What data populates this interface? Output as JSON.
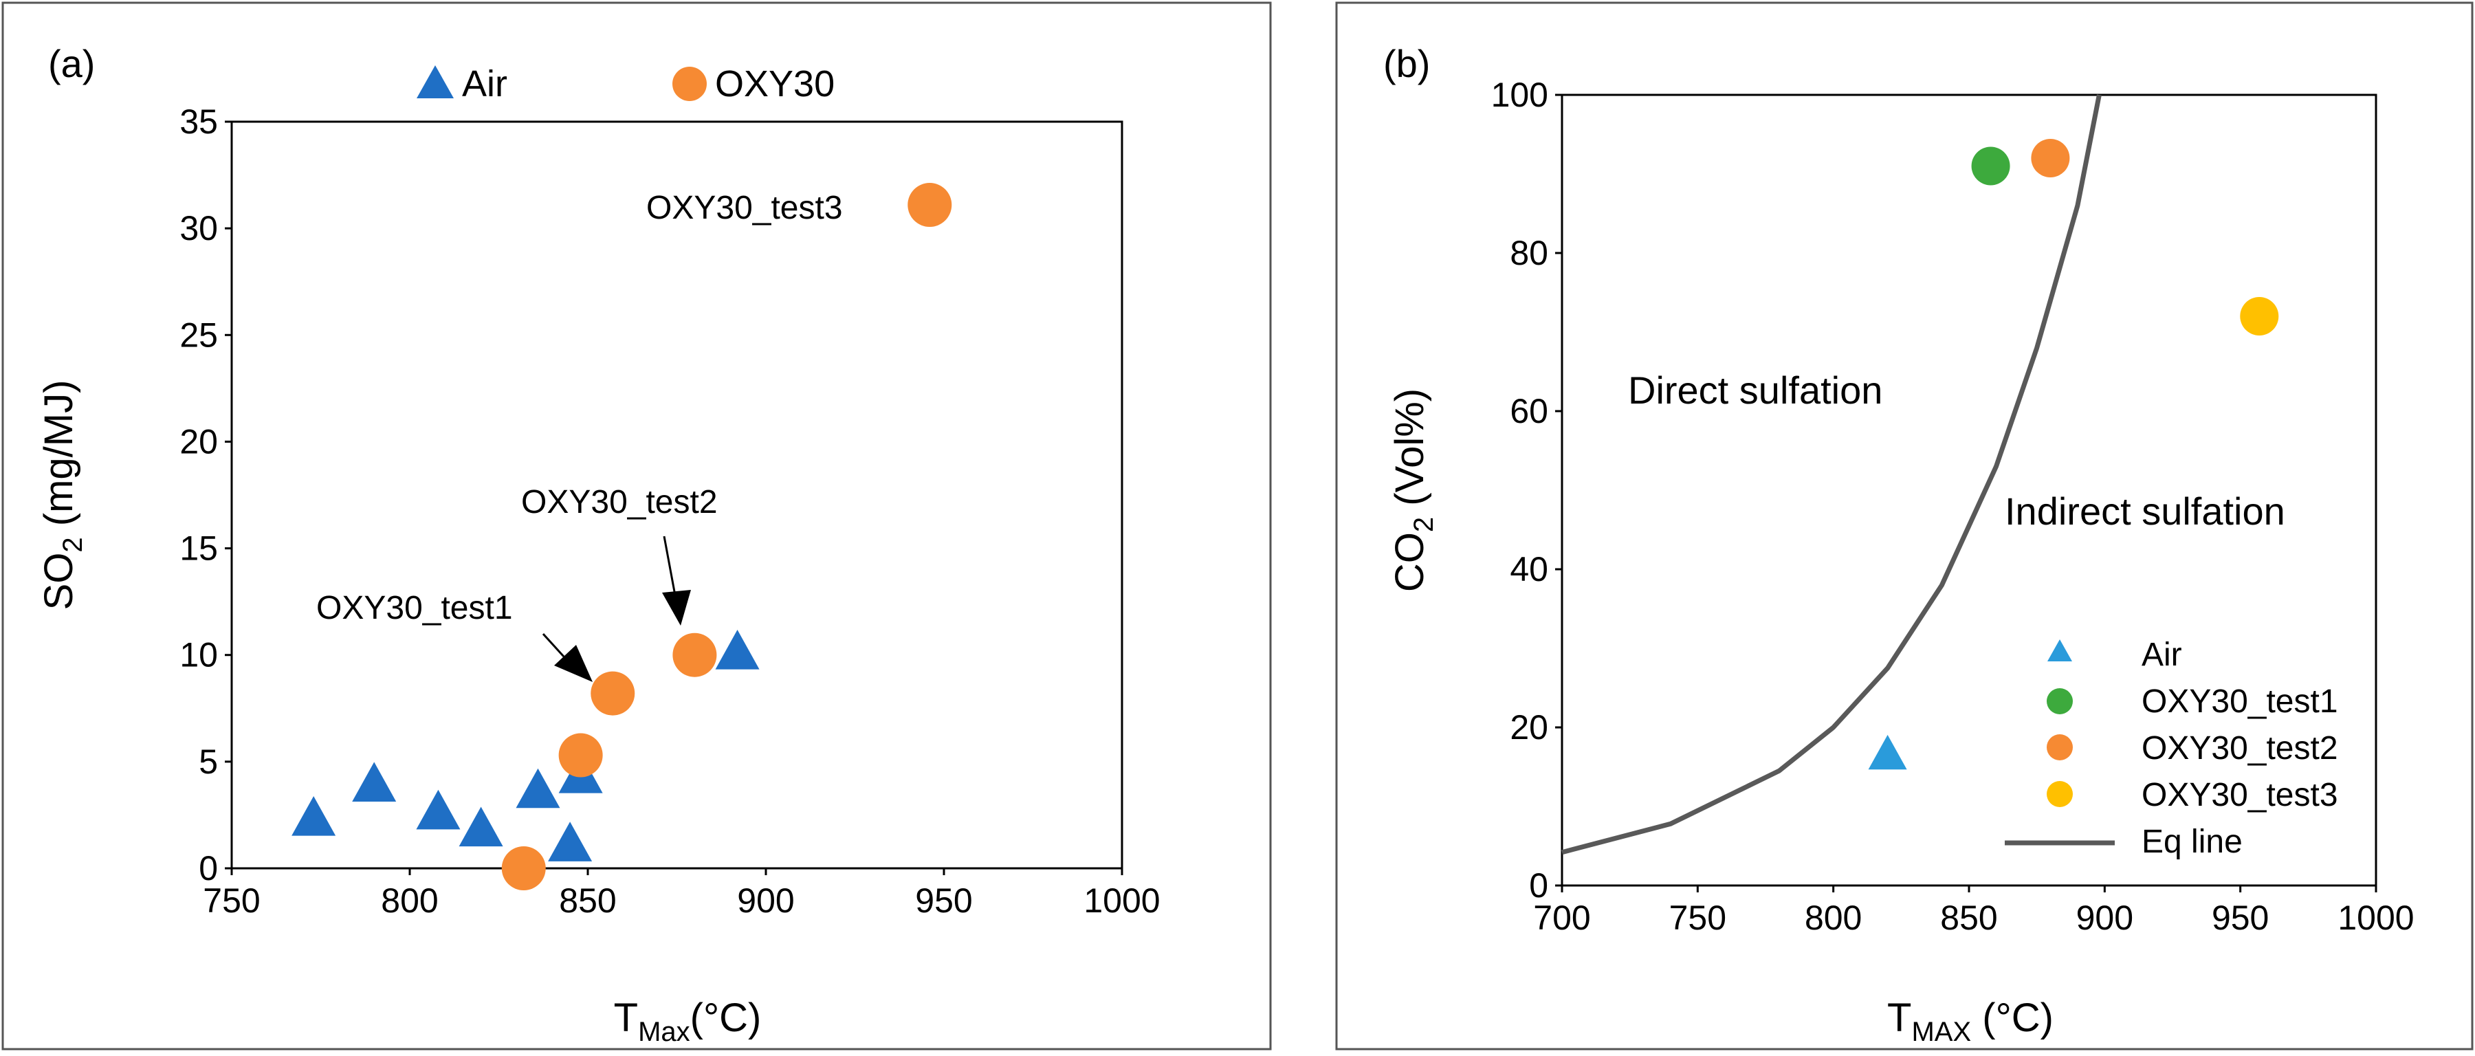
{
  "chart_data": [
    {
      "type": "scatter",
      "panel_label": "(a)",
      "xlabel_main": "T",
      "xlabel_sub": "Max",
      "xlabel_unit": "(°C)",
      "ylabel_main": "SO",
      "ylabel_sub": "2",
      "ylabel_unit": " (mg/MJ)",
      "xlim": [
        750,
        1000
      ],
      "ylim": [
        0,
        35
      ],
      "xticks": [
        750,
        800,
        850,
        900,
        950,
        1000
      ],
      "yticks": [
        0,
        5,
        10,
        15,
        20,
        25,
        30,
        35
      ],
      "legend_position": "top",
      "series": [
        {
          "name": "Air",
          "marker": "triangle",
          "color": "#1F6FC5",
          "points": [
            {
              "x": 773,
              "y": 2.3
            },
            {
              "x": 790,
              "y": 3.9
            },
            {
              "x": 808,
              "y": 2.6
            },
            {
              "x": 820,
              "y": 1.8
            },
            {
              "x": 836,
              "y": 3.6
            },
            {
              "x": 845,
              "y": 1.1
            },
            {
              "x": 848,
              "y": 4.3
            },
            {
              "x": 892,
              "y": 10.1
            }
          ]
        },
        {
          "name": "OXY30",
          "marker": "circle",
          "color": "#F68A33",
          "points": [
            {
              "x": 832,
              "y": 0.0
            },
            {
              "x": 848,
              "y": 5.3
            },
            {
              "x": 857,
              "y": 8.2
            },
            {
              "x": 880,
              "y": 10.0
            },
            {
              "x": 946,
              "y": 31.1
            }
          ]
        }
      ],
      "annotations": [
        {
          "text": "OXY30_test1",
          "x": 857,
          "y": 8.2
        },
        {
          "text": "OXY30_test2",
          "x": 880,
          "y": 10.0
        },
        {
          "text": "OXY30_test3",
          "x": 946,
          "y": 31.1
        }
      ]
    },
    {
      "type": "scatter",
      "panel_label": "(b)",
      "xlabel_main": "T",
      "xlabel_sub": "MAX",
      "xlabel_unit": " (°C)",
      "ylabel_main": "CO",
      "ylabel_sub": "2",
      "ylabel_unit": " (Vol%)",
      "xlim": [
        700,
        1000
      ],
      "ylim": [
        0,
        100
      ],
      "xticks": [
        700,
        750,
        800,
        850,
        900,
        950,
        1000
      ],
      "yticks": [
        0,
        20,
        40,
        60,
        80,
        100
      ],
      "legend_position": "bottom-right",
      "regions": [
        "Direct sulfation",
        "Indirect sulfation"
      ],
      "series": [
        {
          "name": "Air",
          "marker": "triangle",
          "color": "#2A9BDB",
          "points": [
            {
              "x": 820,
              "y": 16.5
            }
          ]
        },
        {
          "name": "OXY30_test1",
          "marker": "circle",
          "color": "#3DAA3D",
          "points": [
            {
              "x": 858,
              "y": 91.0
            }
          ]
        },
        {
          "name": "OXY30_test2",
          "marker": "circle",
          "color": "#F68A33",
          "points": [
            {
              "x": 880,
              "y": 92.0
            }
          ]
        },
        {
          "name": "OXY30_test3",
          "marker": "circle",
          "color": "#FFC000",
          "points": [
            {
              "x": 957,
              "y": 72.0
            }
          ]
        },
        {
          "name": "Eq line",
          "marker": "line",
          "color": "#595959",
          "x": [
            700,
            740,
            780,
            800,
            820,
            840,
            860,
            875,
            890,
            898
          ],
          "y": [
            4.2,
            7.8,
            14.5,
            20.0,
            27.5,
            38.0,
            53.0,
            68.0,
            86.0,
            100.0
          ]
        }
      ]
    }
  ]
}
